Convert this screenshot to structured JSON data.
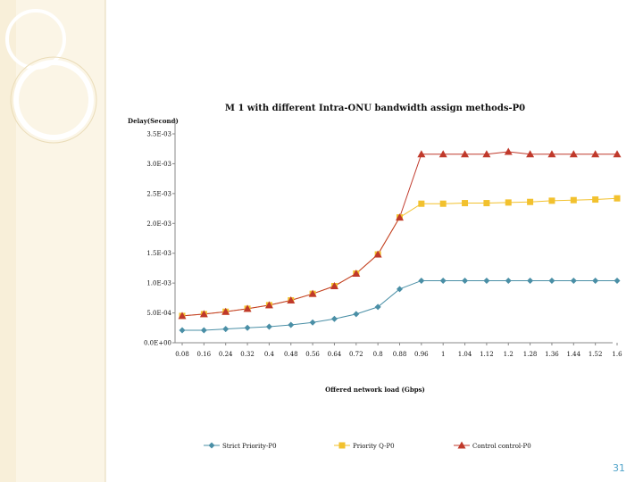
{
  "page_number": "31",
  "colors": {
    "series1": "#4a8fa6",
    "series2": "#f2c12e",
    "series3": "#c0392b",
    "sidebar": "#f8efd9",
    "sidebar_line": "#dfcfa7",
    "page_number": "#4fa3c9"
  },
  "chart_data": {
    "type": "line",
    "title": "M 1 with different Intra-ONU bandwidth assign methods-P0",
    "ylabel": "Delay(Second)",
    "xlabel": "Offered network load (Gbps)",
    "ylim": [
      0,
      0.0035
    ],
    "y_ticks": [
      0,
      0.0005,
      0.001,
      0.0015,
      0.002,
      0.0025,
      0.003,
      0.0035
    ],
    "y_tick_labels": [
      "0.0E+00",
      "5.0E-04",
      "1.0E-03",
      "1.5E-03",
      "2.0E-03",
      "2.5E-03",
      "3.0E-03",
      "3.5E-03"
    ],
    "x": [
      0.08,
      0.16,
      0.24,
      0.32,
      0.4,
      0.48,
      0.56,
      0.64,
      0.72,
      0.8,
      0.88,
      0.96,
      1,
      1.04,
      1.12,
      1.2,
      1.28,
      1.36,
      1.44,
      1.52,
      1.6
    ],
    "x_tick_labels": [
      "0.08",
      "0.16",
      "0.24",
      "0.32",
      "0.4",
      "0.48",
      "0.56",
      "0.64",
      "0.72",
      "0.8",
      "0.88",
      "0.96",
      "1",
      "1.04",
      "1.12",
      "1.2",
      "1.28",
      "1.36",
      "1.44",
      "1.52",
      "1.6"
    ],
    "legend_position": "bottom",
    "grid": false,
    "series": [
      {
        "name": "Strict Priority-P0",
        "marker": "diamond",
        "color": "#4a8fa6",
        "values": [
          0.00021,
          0.00021,
          0.00023,
          0.00025,
          0.00027,
          0.0003,
          0.00034,
          0.0004,
          0.00048,
          0.0006,
          0.0009,
          0.00104,
          0.00104,
          0.00104,
          0.00104,
          0.00104,
          0.00104,
          0.00104,
          0.00104,
          0.00104,
          0.00104
        ]
      },
      {
        "name": "Priority Q-P0",
        "marker": "square",
        "color": "#f2c12e",
        "values": [
          0.00045,
          0.00048,
          0.00052,
          0.00057,
          0.00063,
          0.00071,
          0.00082,
          0.00095,
          0.00116,
          0.00148,
          0.0021,
          0.00233,
          0.00233,
          0.00234,
          0.00234,
          0.00235,
          0.00236,
          0.00238,
          0.00239,
          0.0024,
          0.00242
        ]
      },
      {
        "name": "Control control-P0",
        "marker": "triangle",
        "color": "#c0392b",
        "values": [
          0.00045,
          0.00048,
          0.00052,
          0.00057,
          0.00063,
          0.00071,
          0.00082,
          0.00095,
          0.00116,
          0.00148,
          0.0021,
          0.00316,
          0.00316,
          0.00316,
          0.00316,
          0.0032,
          0.00316,
          0.00316,
          0.00316,
          0.00316,
          0.00316
        ]
      }
    ]
  }
}
